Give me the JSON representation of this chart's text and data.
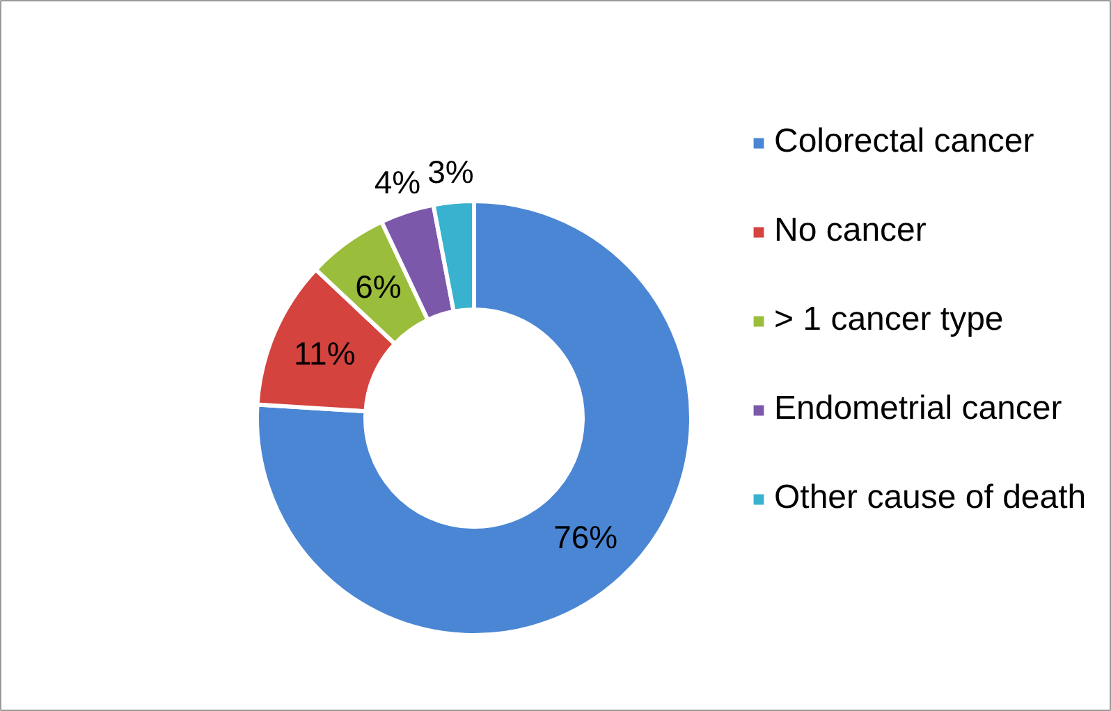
{
  "chart_data": {
    "type": "donut",
    "categories": [
      "Colorectal cancer",
      "No cancer",
      "> 1 cancer type",
      "Endometrial cancer",
      "Other cause of death"
    ],
    "values": [
      76,
      11,
      6,
      4,
      3
    ],
    "colors": [
      "#4a86d4",
      "#d4433e",
      "#9abd3c",
      "#7c58ab",
      "#38b2cf"
    ],
    "value_labels": [
      "76%",
      "11%",
      "6%",
      "4%",
      "3%"
    ],
    "legend": "right"
  }
}
